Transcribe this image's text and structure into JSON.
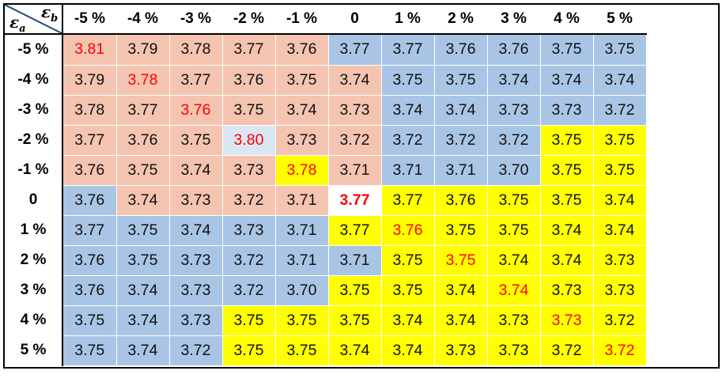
{
  "chart_data": {
    "type": "table",
    "corner": {
      "col_symbol": "ε",
      "col_sub": "b",
      "row_symbol": "ε",
      "row_sub": "a"
    },
    "columns": [
      "-5 %",
      "-4 %",
      "-3 %",
      "-2 %",
      "-1 %",
      "0",
      "1 %",
      "2 %",
      "3 %",
      "4 %",
      "5 %"
    ],
    "rows": [
      {
        "label": "-5 %",
        "values": [
          "3.81",
          "3.79",
          "3.78",
          "3.77",
          "3.76",
          "3.77",
          "3.77",
          "3.76",
          "3.76",
          "3.75",
          "3.75"
        ]
      },
      {
        "label": "-4 %",
        "values": [
          "3.79",
          "3.78",
          "3.77",
          "3.76",
          "3.75",
          "3.74",
          "3.75",
          "3.75",
          "3.74",
          "3.74",
          "3.74"
        ]
      },
      {
        "label": "-3 %",
        "values": [
          "3.78",
          "3.77",
          "3.76",
          "3.75",
          "3.74",
          "3.73",
          "3.74",
          "3.74",
          "3.73",
          "3.73",
          "3.72"
        ]
      },
      {
        "label": "-2 %",
        "values": [
          "3.77",
          "3.76",
          "3.75",
          "3.80",
          "3.73",
          "3.72",
          "3.72",
          "3.72",
          "3.72",
          "3.75",
          "3.75"
        ]
      },
      {
        "label": "-1 %",
        "values": [
          "3.76",
          "3.75",
          "3.74",
          "3.73",
          "3.78",
          "3.71",
          "3.71",
          "3.71",
          "3.70",
          "3.75",
          "3.75"
        ]
      },
      {
        "label": "0",
        "values": [
          "3.76",
          "3.74",
          "3.73",
          "3.72",
          "3.71",
          "3.77",
          "3.77",
          "3.76",
          "3.75",
          "3.75",
          "3.74"
        ]
      },
      {
        "label": "1 %",
        "values": [
          "3.77",
          "3.75",
          "3.74",
          "3.73",
          "3.71",
          "3.77",
          "3.76",
          "3.75",
          "3.75",
          "3.74",
          "3.74"
        ]
      },
      {
        "label": "2 %",
        "values": [
          "3.76",
          "3.75",
          "3.73",
          "3.72",
          "3.71",
          "3.71",
          "3.75",
          "3.75",
          "3.74",
          "3.74",
          "3.73"
        ]
      },
      {
        "label": "3 %",
        "values": [
          "3.76",
          "3.74",
          "3.73",
          "3.72",
          "3.70",
          "3.75",
          "3.75",
          "3.74",
          "3.74",
          "3.73",
          "3.73"
        ]
      },
      {
        "label": "4 %",
        "values": [
          "3.75",
          "3.74",
          "3.73",
          "3.75",
          "3.75",
          "3.75",
          "3.74",
          "3.74",
          "3.73",
          "3.73",
          "3.72"
        ]
      },
      {
        "label": "5 %",
        "values": [
          "3.75",
          "3.74",
          "3.72",
          "3.75",
          "3.75",
          "3.74",
          "3.74",
          "3.73",
          "3.73",
          "3.72",
          "3.72"
        ]
      }
    ],
    "cell_colors": [
      [
        "S",
        "S",
        "S",
        "S",
        "S",
        "B",
        "B",
        "B",
        "B",
        "B",
        "B"
      ],
      [
        "S",
        "S",
        "S",
        "S",
        "S",
        "S",
        "B",
        "B",
        "B",
        "B",
        "B"
      ],
      [
        "S",
        "S",
        "S",
        "S",
        "S",
        "S",
        "B",
        "B",
        "B",
        "B",
        "B"
      ],
      [
        "S",
        "S",
        "S",
        "L",
        "S",
        "S",
        "B",
        "B",
        "B",
        "Y",
        "Y"
      ],
      [
        "S",
        "S",
        "S",
        "S",
        "Y",
        "S",
        "B",
        "B",
        "B",
        "Y",
        "Y"
      ],
      [
        "B",
        "S",
        "S",
        "S",
        "S",
        "W",
        "Y",
        "Y",
        "Y",
        "Y",
        "Y"
      ],
      [
        "B",
        "B",
        "B",
        "B",
        "B",
        "Y",
        "Y",
        "Y",
        "Y",
        "Y",
        "Y"
      ],
      [
        "B",
        "B",
        "B",
        "B",
        "B",
        "B",
        "Y",
        "Y",
        "Y",
        "Y",
        "Y"
      ],
      [
        "B",
        "B",
        "B",
        "B",
        "B",
        "Y",
        "Y",
        "Y",
        "Y",
        "Y",
        "Y"
      ],
      [
        "B",
        "B",
        "B",
        "Y",
        "Y",
        "Y",
        "Y",
        "Y",
        "Y",
        "Y",
        "Y"
      ],
      [
        "B",
        "B",
        "B",
        "Y",
        "Y",
        "Y",
        "Y",
        "Y",
        "Y",
        "Y",
        "Y"
      ]
    ],
    "color_key": {
      "S": "#f4c4b0",
      "B": "#a9c5e6",
      "Y": "#ffff00",
      "W": "#ffffff",
      "L": "#dbe6f4"
    },
    "diagonal_text_color": "#ff0000",
    "center_cell_bold": true,
    "diagonal_line_color": "#1f4e79"
  }
}
